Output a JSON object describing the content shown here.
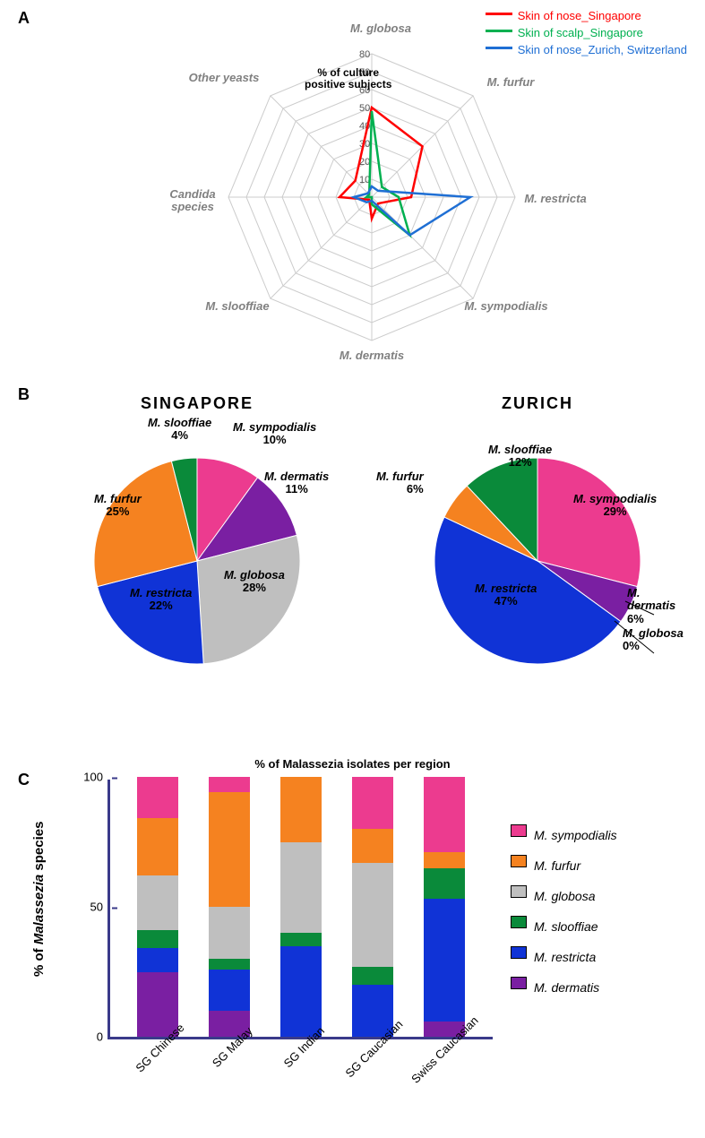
{
  "colors": {
    "red": "#ff0000",
    "green": "#00b050",
    "blue": "#1f6fd4",
    "pink": "#ec3b8f",
    "orange": "#f58220",
    "grey": "#bfbfbf",
    "darkgreen": "#0a8a3a",
    "darkblue": "#1033d6",
    "purple": "#7a1fa2",
    "axis": "#3a3a8a",
    "grid": "#cccccc",
    "mutetext": "#808080"
  },
  "panelA": {
    "label": "A",
    "axis_title": "% of culture\npositive subjects",
    "ticks": [
      0,
      10,
      20,
      30,
      40,
      50,
      60,
      70,
      80
    ],
    "max": 80,
    "axes": [
      "M. globosa",
      "M. furfur",
      "M. restricta",
      "M. sympodialis",
      "M. dermatis",
      "M. slooffiae",
      "Candida species",
      "Other yeasts"
    ],
    "series": [
      {
        "name": "Skin of nose_Singapore",
        "color": "#ff0000",
        "values": [
          50,
          40,
          22,
          5,
          12,
          2,
          18,
          13
        ]
      },
      {
        "name": "Skin of scalp_Singapore",
        "color": "#00b050",
        "values": [
          48,
          8,
          15,
          30,
          4,
          0,
          3,
          2
        ]
      },
      {
        "name": "Skin of nose_Zurich, Switzerland",
        "color": "#1f6fd4",
        "values": [
          6,
          5,
          55,
          30,
          2,
          4,
          10,
          3
        ]
      }
    ]
  },
  "panelB": {
    "label": "B",
    "caption": "% of Malassezia isolates per region",
    "pies": [
      {
        "title": "SINGAPORE",
        "slices": [
          {
            "name": "M. sympodialis",
            "pct": 10,
            "color": "#ec3b8f"
          },
          {
            "name": "M. dermatis",
            "pct": 11,
            "color": "#7a1fa2"
          },
          {
            "name": "M. globosa",
            "pct": 28,
            "color": "#bfbfbf"
          },
          {
            "name": "M. restricta",
            "pct": 22,
            "color": "#1033d6"
          },
          {
            "name": "M. furfur",
            "pct": 25,
            "color": "#f58220"
          },
          {
            "name": "M. slooffiae",
            "pct": 4,
            "color": "#0a8a3a"
          }
        ]
      },
      {
        "title": "ZURICH",
        "slices": [
          {
            "name": "M. sympodialis",
            "pct": 29,
            "color": "#ec3b8f"
          },
          {
            "name": "M. dermatis",
            "pct": 6,
            "color": "#7a1fa2"
          },
          {
            "name": "M. globosa",
            "pct": 0,
            "color": "#bfbfbf"
          },
          {
            "name": "M. restricta",
            "pct": 47,
            "color": "#1033d6"
          },
          {
            "name": "M. furfur",
            "pct": 6,
            "color": "#f58220"
          },
          {
            "name": "M. slooffiae",
            "pct": 12,
            "color": "#0a8a3a"
          }
        ]
      }
    ]
  },
  "panelC": {
    "label": "C",
    "y_title_pre": "% of ",
    "y_title_it": "Malassezia",
    "y_title_post": " species",
    "yticks": [
      0,
      50,
      100
    ],
    "ymax": 100,
    "legend": [
      {
        "name": "M. sympodialis",
        "color": "#ec3b8f"
      },
      {
        "name": "M. furfur",
        "color": "#f58220"
      },
      {
        "name": "M. globosa",
        "color": "#bfbfbf"
      },
      {
        "name": "M. slooffiae",
        "color": "#0a8a3a"
      },
      {
        "name": "M. restricta",
        "color": "#1033d6"
      },
      {
        "name": "M. dermatis",
        "color": "#7a1fa2"
      }
    ],
    "groups": [
      {
        "name": "SG Chinese",
        "stack": {
          "M. sympodialis": 16,
          "M. furfur": 22,
          "M. globosa": 21,
          "M. slooffiae": 7,
          "M. restricta": 9,
          "M. dermatis": 25
        }
      },
      {
        "name": "SG Malay",
        "stack": {
          "M. sympodialis": 6,
          "M. furfur": 44,
          "M. globosa": 20,
          "M. slooffiae": 4,
          "M. restricta": 16,
          "M. dermatis": 10
        }
      },
      {
        "name": "SG Indian",
        "stack": {
          "M. sympodialis": 0,
          "M. furfur": 25,
          "M. globosa": 35,
          "M. slooffiae": 5,
          "M. restricta": 35,
          "M. dermatis": 0
        }
      },
      {
        "name": "SG Caucasian",
        "stack": {
          "M. sympodialis": 20,
          "M. furfur": 13,
          "M. globosa": 40,
          "M. slooffiae": 7,
          "M. restricta": 20,
          "M. dermatis": 0
        }
      },
      {
        "name": "Swiss Caucasian",
        "stack": {
          "M. sympodialis": 29,
          "M. furfur": 6,
          "M. globosa": 0,
          "M. slooffiae": 12,
          "M. restricta": 47,
          "M. dermatis": 6
        }
      }
    ],
    "stack_order": [
      "M. sympodialis",
      "M. furfur",
      "M. globosa",
      "M. slooffiae",
      "M. restricta",
      "M. dermatis"
    ]
  }
}
